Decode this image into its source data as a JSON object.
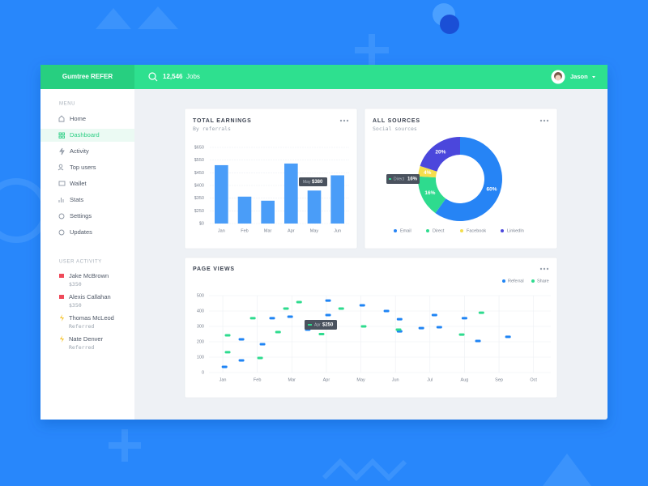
{
  "header": {
    "brand": "Gumtree REFER",
    "jobs_count": "12,546",
    "jobs_label": "Jobs",
    "user": "Jason"
  },
  "sidebar": {
    "menu_label": "MENU",
    "menu": [
      "Home",
      "Dashboard",
      "Activity",
      "Top users",
      "Wallet",
      "Stats",
      "Settings",
      "Updates"
    ],
    "activity_label": "USER ACTIVITY",
    "activity": [
      {
        "name": "Jake McBrown",
        "detail": "$350"
      },
      {
        "name": "Alexis Callahan",
        "detail": "$350"
      },
      {
        "name": "Thomas McLeod",
        "detail": "Referred"
      },
      {
        "name": "Nate Denver",
        "detail": "Referred"
      }
    ]
  },
  "chart_data": [
    {
      "type": "bar",
      "title": "TOTAL EARNINGS",
      "subtitle": "By referrals",
      "categories": [
        "Jan",
        "Feb",
        "Mar",
        "Apr",
        "May",
        "Jun"
      ],
      "values": [
        510,
        356,
        330,
        523,
        380,
        440
      ],
      "color": "#4a9df8",
      "ylim": [
        0,
        650
      ],
      "yticks": [
        {
          "value": 0,
          "label": "$0"
        },
        {
          "value": 250,
          "label": "$250"
        },
        {
          "value": 350,
          "label": "$350"
        },
        {
          "value": 400,
          "label": "$400"
        },
        {
          "value": 450,
          "label": "$450"
        },
        {
          "value": 550,
          "label": "$550"
        },
        {
          "value": 650,
          "label": "$650"
        }
      ],
      "grid": true,
      "tooltip": {
        "category": "May",
        "label": "$380"
      }
    },
    {
      "type": "pie",
      "title": "ALL SOURCES",
      "subtitle": "Social sources",
      "categories": [
        "Email",
        "Direct",
        "Facebook",
        "LinkedIn"
      ],
      "values": [
        60,
        16,
        4,
        20
      ],
      "value_labels": [
        "60%",
        "16%",
        "4%",
        "20%"
      ],
      "colors": [
        "#2684f5",
        "#2edb8e",
        "#f4de4c",
        "#4b47dc"
      ],
      "legend": "bottom",
      "tooltip": {
        "category": "Direct",
        "label": "16%"
      }
    },
    {
      "type": "scatter",
      "title": "PAGE VIEWS",
      "series": [
        {
          "name": "Referral",
          "color": "#1f84f4",
          "x": [
            0.05,
            0.54,
            0.54,
            1.15,
            1.43,
            1.95,
            2.46,
            3.05,
            3.05,
            4.04,
            4.74,
            5.12,
            5.12,
            5.75,
            6.13,
            6.27,
            7.0,
            7.39,
            8.26
          ],
          "values": [
            37,
            79,
            216,
            184,
            353,
            363,
            279,
            468,
            374,
            437,
            400,
            347,
            268,
            289,
            374,
            295,
            353,
            205,
            232
          ]
        },
        {
          "name": "Share",
          "color": "#2edb8e",
          "x": [
            0.14,
            0.14,
            0.87,
            1.08,
            1.6,
            1.83,
            2.21,
            2.86,
            3.43,
            4.08,
            5.09,
            6.92,
            7.49
          ],
          "values": [
            242,
            132,
            353,
            95,
            263,
            416,
            458,
            250,
            416,
            300,
            279,
            247,
            389
          ]
        }
      ],
      "xlim": [
        -0.4,
        9.5
      ],
      "xticks": [
        {
          "value": 0,
          "label": "Jan"
        },
        {
          "value": 1,
          "label": "Feb"
        },
        {
          "value": 2,
          "label": "Mar"
        },
        {
          "value": 3,
          "label": "Apr"
        },
        {
          "value": 4,
          "label": "May"
        },
        {
          "value": 5,
          "label": "Jun"
        },
        {
          "value": 6,
          "label": "Jul"
        },
        {
          "value": 7,
          "label": "Aug"
        },
        {
          "value": 8,
          "label": "Sep"
        },
        {
          "value": 9,
          "label": "Oct"
        }
      ],
      "ylim": [
        0,
        500
      ],
      "yticks": [
        0,
        100,
        200,
        300,
        400,
        500
      ],
      "grid": true,
      "legend": "top-right",
      "tooltip": {
        "category": "Apr",
        "label": "$250"
      }
    }
  ]
}
